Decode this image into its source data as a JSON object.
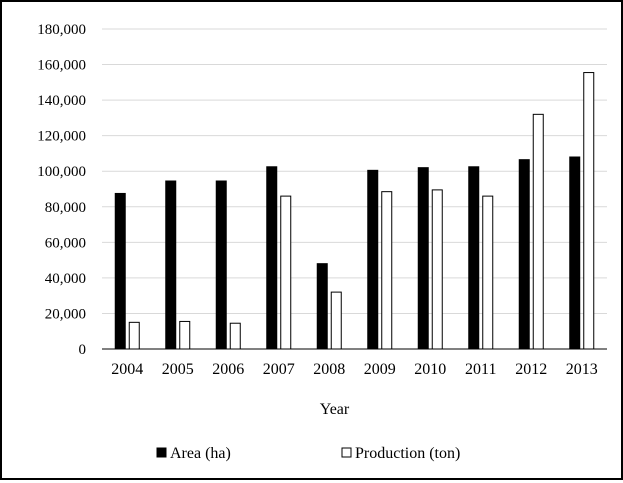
{
  "chart_data": {
    "type": "bar",
    "title": "",
    "xlabel": "Year",
    "ylabel": "",
    "categories": [
      "2004",
      "2005",
      "2006",
      "2007",
      "2008",
      "2009",
      "2010",
      "2011",
      "2012",
      "2013"
    ],
    "series": [
      {
        "name": "Area (ha)",
        "fill": "#000000",
        "values": [
          87500,
          94500,
          94500,
          102500,
          48000,
          100500,
          102000,
          102500,
          106500,
          108000
        ]
      },
      {
        "name": "Production (ton)",
        "fill": "#ffffff",
        "values": [
          15000,
          15500,
          14500,
          86000,
          32000,
          88500,
          89500,
          86000,
          132000,
          155500
        ]
      }
    ],
    "ylim": [
      0,
      180000
    ],
    "yticks": [
      0,
      20000,
      40000,
      60000,
      80000,
      100000,
      120000,
      140000,
      160000,
      180000
    ],
    "ytick_labels": [
      "0",
      "20,000",
      "40,000",
      "60,000",
      "80,000",
      "100,000",
      "120,000",
      "140,000",
      "160,000",
      "180,000"
    ],
    "grid": true,
    "legend_position": "bottom"
  }
}
